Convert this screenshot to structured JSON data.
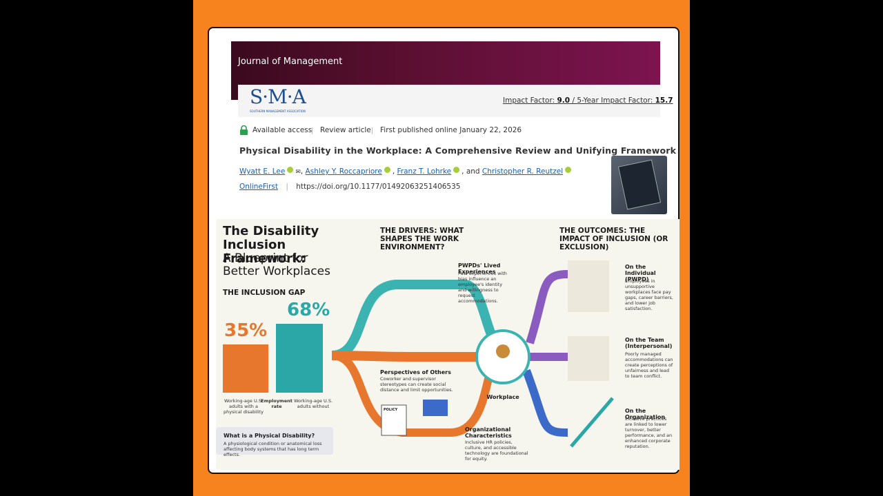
{
  "journal": {
    "name": "Journal of Management",
    "logo": "S·M·A",
    "logo_subtitle": "SOUTHERN MANAGEMENT ASSOCIATION",
    "impact_label": "Impact Factor:",
    "impact_value": "9.0",
    "separator": "/",
    "five_year_label": "5-Year Impact Factor:",
    "five_year_value": "15.7"
  },
  "meta": [
    "Available access",
    "Review article",
    "First published online January 22, 2026"
  ],
  "article": {
    "title": "Physical Disability in the Workplace: A Comprehensive Review and Unifying Framework",
    "authors": [
      "Wyatt E. Lee",
      "Ashley Y. Roccapriore",
      "Franz T. Lohrke",
      "Christopher R. Reutzel"
    ],
    "author_separators": [
      ",",
      ",",
      ", and"
    ],
    "issue": "OnlineFirst",
    "doi": "https://doi.org/10.1177/01492063251406535"
  },
  "infographic": {
    "title": "The Disability Inclusion Framework:",
    "subtitle": "A Blueprint for Better Workplaces",
    "gap_heading": "THE INCLUSION GAP",
    "gap_left_value": "35%",
    "gap_right_value": "68%",
    "gap_left_label": "Working-age U.S. adults with a physical disability",
    "gap_middle_label": "Employment rate",
    "gap_right_label": "Working-age U.S. adults without",
    "definition_title": "What is a Physical Disability?",
    "definition_text": "A physiological condition or anatomical loss affecting body systems that has long term effects.",
    "drivers_heading": "THE DRIVERS: WHAT SHAPES THE WORK ENVIRONMENT?",
    "drivers": [
      {
        "title": "PWPDs' Lived Experiences",
        "text": "Past experiences with bias influence an employee's identity and willingness to request accommodations."
      },
      {
        "title": "Perspectives of Others",
        "text": "Coworker and supervisor stereotypes can create social distance and limit opportunities."
      },
      {
        "title": "Organizational Characteristics",
        "text": "Inclusive HR policies, culture, and accessible technology are foundational for equity."
      }
    ],
    "center": "Workplace",
    "policy_sign": "POLICY",
    "outcomes_heading": "THE OUTCOMES: THE IMPACT OF INCLUSION (OR EXCLUSION)",
    "outcomes": [
      {
        "title": "On the Individual (PWPD)",
        "text": "Employees in unsupportive workplaces face pay gaps, career barriers, and lower job satisfaction."
      },
      {
        "title": "On the Team (Interpersonal)",
        "text": "Poorly managed accommodations can create perceptions of unfairness and lead to team conflict."
      },
      {
        "title": "On the Organization",
        "text": "Inclusive practices are linked to lower turnover, better performance, and an enhanced corporate reputation."
      }
    ]
  }
}
